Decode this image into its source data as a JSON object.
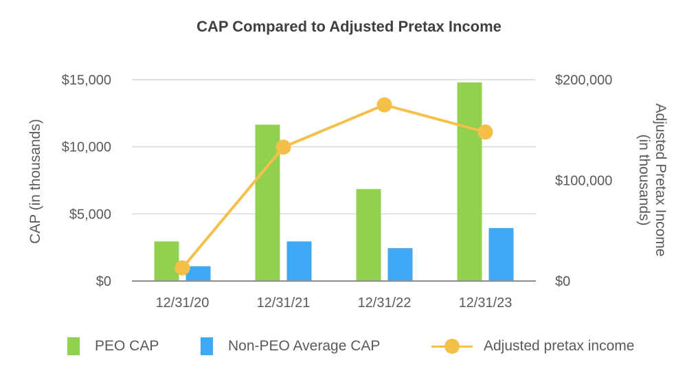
{
  "chart_data": {
    "type": "bar+line",
    "title": "CAP Compared to Adjusted Pretax Income",
    "categories": [
      "12/31/20",
      "12/31/21",
      "12/31/22",
      "12/31/23"
    ],
    "series": [
      {
        "name": "PEO CAP",
        "type": "bar",
        "axis": "left",
        "color": "#92d050",
        "values": [
          2950,
          11650,
          6850,
          14800
        ]
      },
      {
        "name": "Non-PEO Average CAP",
        "type": "bar",
        "axis": "left",
        "color": "#3fa9f5",
        "values": [
          1100,
          2950,
          2450,
          3950
        ]
      },
      {
        "name": "Adjusted pretax income",
        "type": "line",
        "axis": "right",
        "color": "#f5c04a",
        "values": [
          13000,
          133000,
          175000,
          148000
        ]
      }
    ],
    "y_left": {
      "label": "CAP (in thousands)",
      "ylim": [
        0,
        15000
      ],
      "ticks": [
        0,
        5000,
        10000,
        15000
      ],
      "tick_labels": [
        "$0",
        "$5,000",
        "$10,000",
        "$15,000"
      ]
    },
    "y_right": {
      "label_line1": "Adjusted Pretax Income",
      "label_line2": "(in thousands)",
      "ylim": [
        0,
        200000
      ],
      "ticks": [
        0,
        100000,
        200000
      ],
      "tick_labels": [
        "$0",
        "$100,000",
        "$200,000"
      ]
    },
    "grid": true,
    "legend_position": "bottom"
  }
}
